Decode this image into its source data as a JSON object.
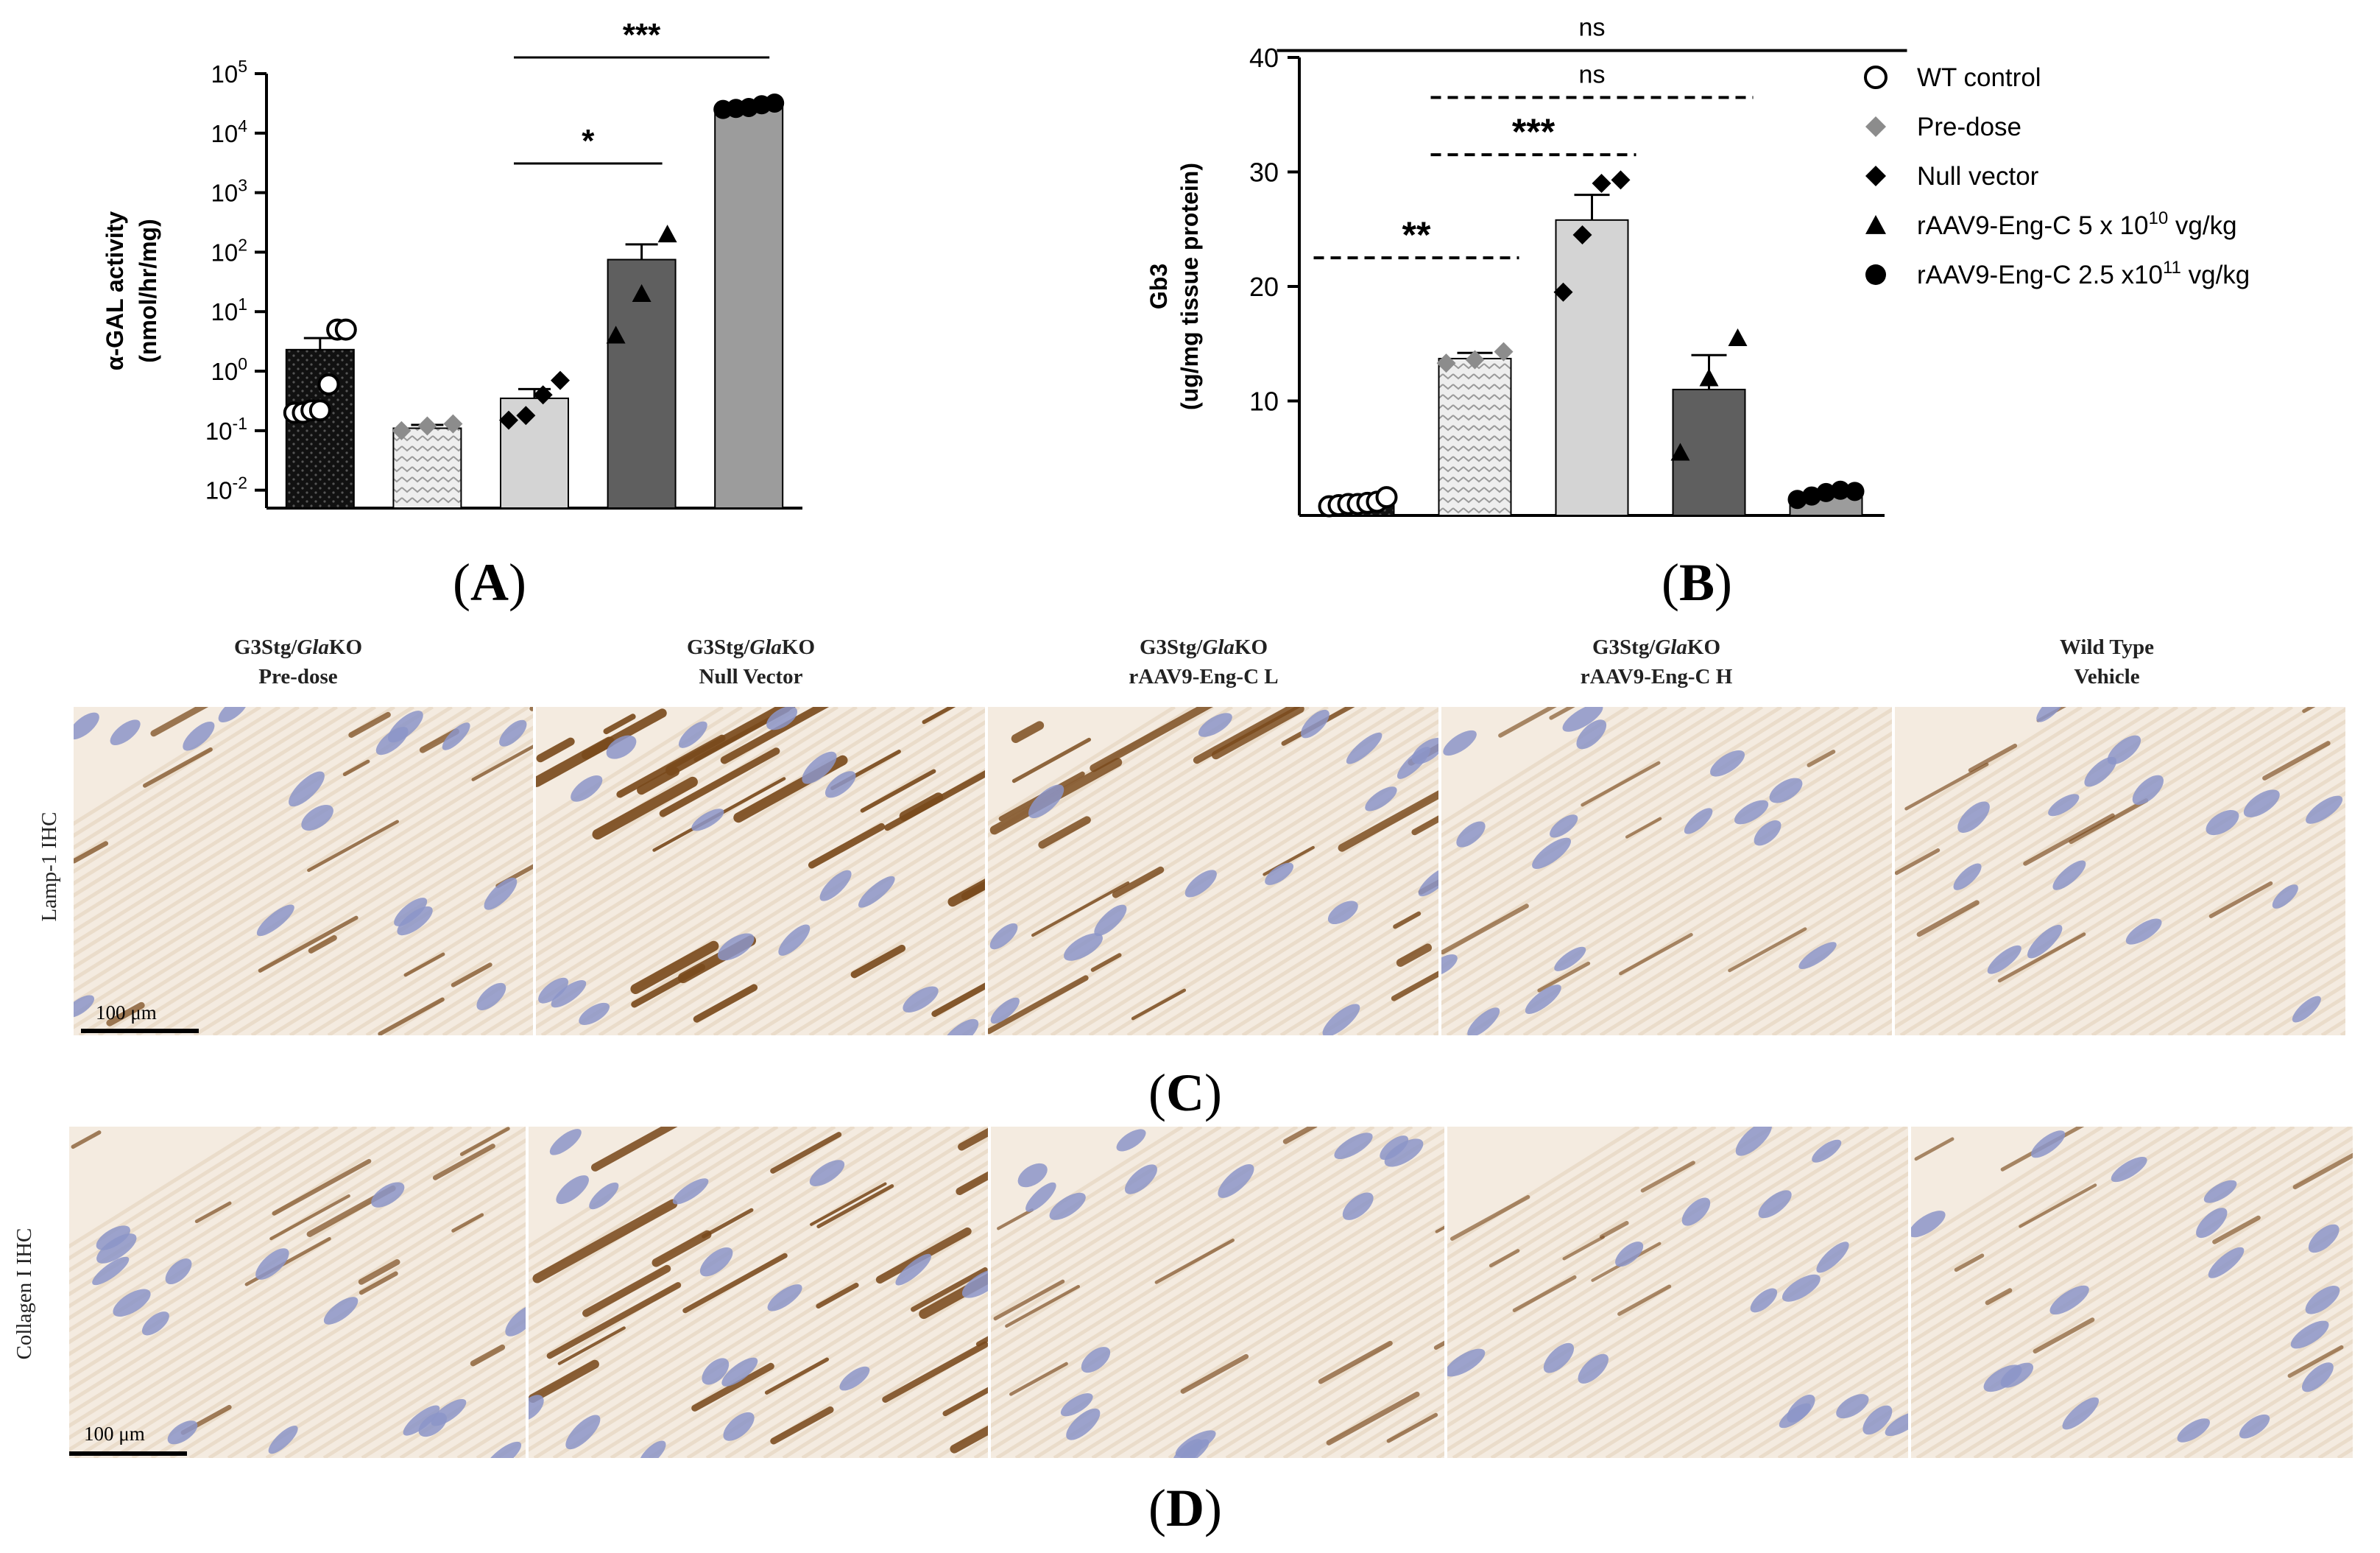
{
  "chart_data": [
    {
      "panel": "A",
      "type": "bar",
      "ylabel_line1": "α-GAL activity",
      "ylabel_line2": "(nmol/hr/mg)",
      "y_scale": "log",
      "ylim": [
        0.005,
        100000
      ],
      "y_ticks": [
        {
          "value": 0.01,
          "base": "10",
          "exp": "-2"
        },
        {
          "value": 0.1,
          "base": "10",
          "exp": "-1"
        },
        {
          "value": 1,
          "base": "10",
          "exp": "0"
        },
        {
          "value": 10,
          "base": "10",
          "exp": "1"
        },
        {
          "value": 100,
          "base": "10",
          "exp": "2"
        },
        {
          "value": 1000,
          "base": "10",
          "exp": "3"
        },
        {
          "value": 10000,
          "base": "10",
          "exp": "4"
        },
        {
          "value": 100000,
          "base": "10",
          "exp": "5"
        }
      ],
      "groups": [
        {
          "name": "WT control",
          "mean": 2.3,
          "err": 1.3,
          "fill": "#111111",
          "pattern": "dark-dots",
          "marker": "circle-open",
          "points": [
            0.2,
            0.2,
            0.22,
            0.22,
            0.6,
            5.0,
            5.0
          ]
        },
        {
          "name": "Pre-dose",
          "mean": 0.11,
          "err": 0.015,
          "fill": "#d9d9d9",
          "pattern": "light-dots",
          "marker": "diamond-gray",
          "points": [
            0.1,
            0.12,
            0.13
          ]
        },
        {
          "name": "Null vector",
          "mean": 0.35,
          "err": 0.15,
          "fill": "#d4d4d4",
          "pattern": "none",
          "marker": "diamond",
          "points": [
            0.15,
            0.18,
            0.4,
            0.7
          ]
        },
        {
          "name": "rAAV9-Eng-C 5 x 10^10 vg/kg",
          "mean": 75,
          "err": 60,
          "fill": "#5f5f5f",
          "pattern": "none",
          "marker": "triangle",
          "points": [
            4,
            20,
            200
          ]
        },
        {
          "name": "rAAV9-Eng-C 2.5 x10^11 vg/kg",
          "mean": 27000,
          "err": 3000,
          "fill": "#9c9c9c",
          "pattern": "none",
          "marker": "circle",
          "points": [
            25000,
            26000,
            27000,
            30000,
            32000
          ]
        }
      ],
      "significance": [
        {
          "from": 3,
          "to": 4,
          "label": "*",
          "style": "solid"
        },
        {
          "from": 3,
          "to": 5,
          "label": "***",
          "style": "solid"
        }
      ]
    },
    {
      "panel": "B",
      "type": "bar",
      "ylabel_line1": "Gb3",
      "ylabel_line2": "(ug/mg tissue protein)",
      "ylim": [
        0,
        40
      ],
      "y_ticks": [
        10,
        20,
        30,
        40
      ],
      "groups": [
        {
          "name": "WT control",
          "mean": 1.1,
          "err": 0.3,
          "fill": "#111111",
          "pattern": "dark-dots",
          "marker": "circle-open",
          "points": [
            0.8,
            0.9,
            1.0,
            1.0,
            1.1,
            1.2,
            1.6
          ]
        },
        {
          "name": "Pre-dose",
          "mean": 13.7,
          "err": 0.5,
          "fill": "#d9d9d9",
          "pattern": "light-dots",
          "marker": "diamond-gray",
          "points": [
            13.3,
            13.6,
            14.3
          ]
        },
        {
          "name": "Null vector",
          "mean": 25.8,
          "err": 2.2,
          "fill": "#d4d4d4",
          "pattern": "none",
          "marker": "diamond",
          "points": [
            19.5,
            24.5,
            29.0,
            29.3
          ]
        },
        {
          "name": "rAAV9-Eng-C 5 x 10^10 vg/kg",
          "mean": 11.0,
          "err": 3.0,
          "fill": "#5f5f5f",
          "pattern": "none",
          "marker": "triangle",
          "points": [
            5.5,
            12.0,
            15.5
          ]
        },
        {
          "name": "rAAV9-Eng-C 2.5 x10^11 vg/kg",
          "mean": 1.8,
          "err": 0.3,
          "fill": "#9c9c9c",
          "pattern": "none",
          "marker": "circle",
          "points": [
            1.4,
            1.7,
            2.0,
            2.2,
            2.1
          ]
        }
      ],
      "significance": [
        {
          "from": 1,
          "to": 2,
          "label": "**",
          "style": "dashed",
          "y": 22.5
        },
        {
          "from": 2,
          "to": 3,
          "label": "***",
          "style": "dashed",
          "y": 31.5
        },
        {
          "from": 2,
          "to": 4,
          "label": "ns",
          "style": "dashed",
          "y": 36.5
        },
        {
          "from": 1,
          "to": 5,
          "label": "ns",
          "style": "solid",
          "y": 40.6
        }
      ]
    }
  ],
  "legend": [
    {
      "marker": "circle-open",
      "text": "WT control",
      "sup": "",
      "after": ""
    },
    {
      "marker": "diamond-gray",
      "text": "Pre-dose",
      "sup": "",
      "after": ""
    },
    {
      "marker": "diamond",
      "text": "Null vector",
      "sup": "",
      "after": ""
    },
    {
      "marker": "triangle",
      "text": "rAAV9-Eng-C 5 x 10",
      "sup": "10",
      "after": " vg/kg"
    },
    {
      "marker": "circle",
      "text": "rAAV9-Eng-C 2.5 x10",
      "sup": "11",
      "after": " vg/kg"
    }
  ],
  "panel_labels": {
    "a": {
      "open": "(",
      "letter": "A",
      "close": ")"
    },
    "b": {
      "open": "(",
      "letter": "B",
      "close": ")"
    },
    "c": {
      "open": "(",
      "letter": "C",
      "close": ")"
    },
    "d": {
      "open": "(",
      "letter": "D",
      "close": ")"
    }
  },
  "micrograph_columns": [
    {
      "line1_prefix": "G3Stg/",
      "line1_italic": "Gla",
      "line1_suffix": "KO",
      "line2": "Pre-dose"
    },
    {
      "line1_prefix": "G3Stg/",
      "line1_italic": "Gla",
      "line1_suffix": "KO",
      "line2": "Null Vector"
    },
    {
      "line1_prefix": "G3Stg/",
      "line1_italic": "Gla",
      "line1_suffix": "KO",
      "line2": "rAAV9-Eng-C L"
    },
    {
      "line1_prefix": "G3Stg/",
      "line1_italic": "Gla",
      "line1_suffix": "KO",
      "line2": "rAAV9-Eng-C H"
    },
    {
      "line1_prefix": "",
      "line1_italic": "",
      "line1_suffix": "Wild Type",
      "line2": "Vehicle"
    }
  ],
  "micrograph_rows": [
    {
      "label": "Lamp-1 IHC",
      "scale_bar": "100 μm",
      "stain_levels": [
        0.45,
        0.9,
        0.7,
        0.2,
        0.25
      ]
    },
    {
      "label": "Collagen I IHC",
      "scale_bar": "100 μm",
      "stain_levels": [
        0.35,
        0.8,
        0.3,
        0.15,
        0.2
      ]
    }
  ],
  "colors": {
    "axis": "#000000",
    "tissue_background": "#f4ebe0",
    "fiber_stripe": "#e6d6c2",
    "nucleus": "#8c95c8",
    "brown_stain": "#7a4a1c"
  }
}
